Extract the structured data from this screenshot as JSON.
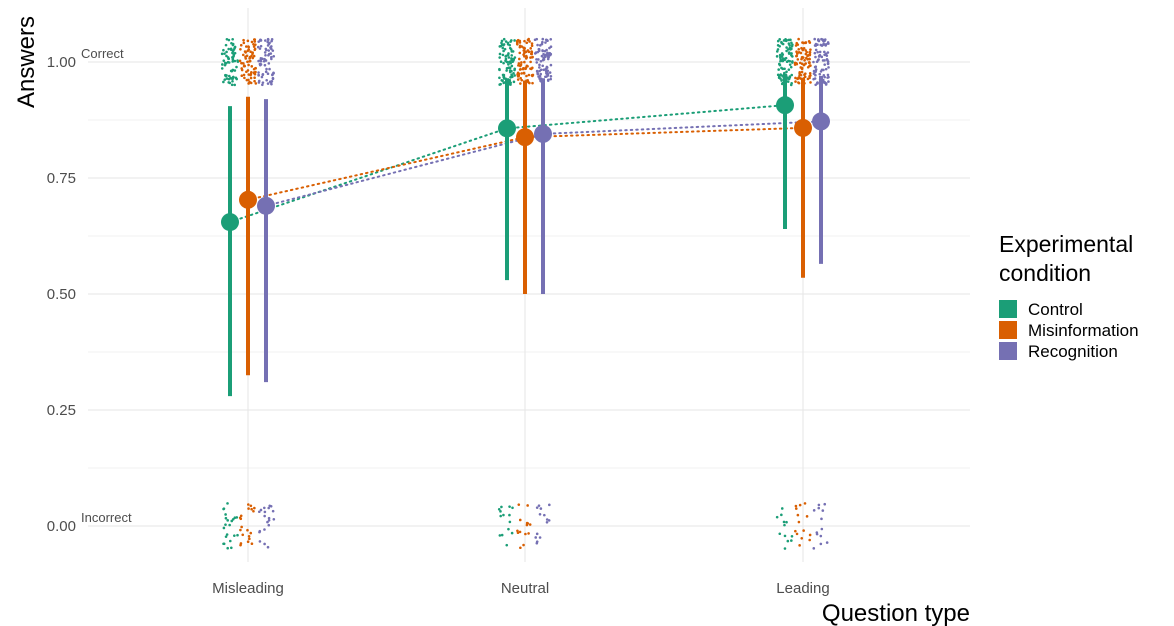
{
  "chart_data": {
    "type": "scatter",
    "title": "",
    "xlabel": "Question type",
    "ylabel": "Answers",
    "categories": [
      "Misleading",
      "Neutral",
      "Leading"
    ],
    "ylim": [
      -0.05,
      1.05
    ],
    "yticks": [
      0.0,
      0.25,
      0.5,
      0.75,
      1.0
    ],
    "ytick_labels": [
      "0.00",
      "0.25",
      "0.50",
      "0.75",
      "1.00"
    ],
    "grid": true,
    "annotations": [
      {
        "text": "Correct",
        "y": 1.0
      },
      {
        "text": "Incorrect",
        "y": 0.0
      }
    ],
    "legend": {
      "title": "Experimental\ncondition",
      "position": "right"
    },
    "series": [
      {
        "name": "Control",
        "color": "#1b9e77",
        "values": [
          0.655,
          0.857,
          0.907
        ],
        "lower": [
          0.28,
          0.53,
          0.64
        ],
        "upper": [
          0.905,
          0.965,
          0.975
        ]
      },
      {
        "name": "Misinformation",
        "color": "#d95f02",
        "values": [
          0.703,
          0.838,
          0.858
        ],
        "lower": [
          0.325,
          0.5,
          0.535
        ],
        "upper": [
          0.925,
          0.96,
          0.965
        ]
      },
      {
        "name": "Recognition",
        "color": "#7570b3",
        "values": [
          0.69,
          0.845,
          0.872
        ],
        "lower": [
          0.31,
          0.5,
          0.565
        ],
        "upper": [
          0.92,
          0.965,
          0.97
        ]
      }
    ]
  }
}
